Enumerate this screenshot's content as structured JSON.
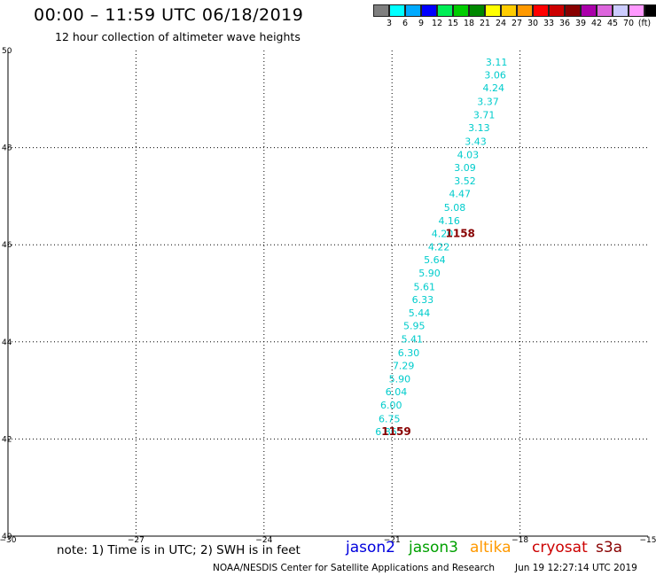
{
  "header": {
    "title": "00:00 – 11:59 UTC 06/18/2019",
    "subtitle": "12 hour collection of altimeter wave heights"
  },
  "colorbar": {
    "colors": [
      "#7f7f7f",
      "#00ffff",
      "#00aaff",
      "#0000ff",
      "#00ee55",
      "#00cc00",
      "#008800",
      "#ffff00",
      "#ffcc00",
      "#ff9900",
      "#ff0000",
      "#cc0000",
      "#880000",
      "#aa00aa",
      "#dd66dd",
      "#ccccff",
      "#ff99ff",
      "#000000"
    ],
    "labels": [
      "3",
      "6",
      "9",
      "12",
      "15",
      "18",
      "21",
      "24",
      "27",
      "30",
      "33",
      "36",
      "39",
      "42",
      "45",
      "70",
      "(ft)"
    ]
  },
  "chart_data": {
    "type": "scatter",
    "title": "00:00 – 11:59 UTC 06/18/2019",
    "subtitle": "12 hour collection of altimeter wave heights",
    "xlabel": "",
    "ylabel": "",
    "xlim": [
      -30,
      -15
    ],
    "ylim": [
      40,
      50
    ],
    "x_ticks": [
      -30,
      -27,
      -24,
      -21,
      -18,
      -15
    ],
    "x_tick_labels": [
      "−30",
      "−27",
      "−24",
      "−21",
      "−18",
      "−15"
    ],
    "y_ticks": [
      40,
      42,
      44,
      46,
      48,
      50
    ],
    "y_tick_labels": [
      "40",
      "42",
      "44",
      "46",
      "48",
      "50"
    ],
    "grid": true,
    "series": [
      {
        "name": "s3a",
        "color": "#00cccc",
        "points": [
          {
            "lon": -18.55,
            "lat": 49.76,
            "swh": "3.11"
          },
          {
            "lon": -18.58,
            "lat": 49.5,
            "swh": "3.06"
          },
          {
            "lon": -18.62,
            "lat": 49.23,
            "swh": "4.24"
          },
          {
            "lon": -18.75,
            "lat": 48.95,
            "swh": "3.37"
          },
          {
            "lon": -18.84,
            "lat": 48.68,
            "swh": "3.71"
          },
          {
            "lon": -18.96,
            "lat": 48.41,
            "swh": "3.13"
          },
          {
            "lon": -19.04,
            "lat": 48.13,
            "swh": "3.43"
          },
          {
            "lon": -19.22,
            "lat": 47.86,
            "swh": "4.03"
          },
          {
            "lon": -19.29,
            "lat": 47.59,
            "swh": "3.09"
          },
          {
            "lon": -19.29,
            "lat": 47.32,
            "swh": "3.52"
          },
          {
            "lon": -19.41,
            "lat": 47.05,
            "swh": "4.47"
          },
          {
            "lon": -19.53,
            "lat": 46.77,
            "swh": "5.08"
          },
          {
            "lon": -19.66,
            "lat": 46.5,
            "swh": "4.16"
          },
          {
            "lon": -19.82,
            "lat": 46.23,
            "swh": "4.20"
          },
          {
            "lon": -19.9,
            "lat": 45.96,
            "swh": "4.22"
          },
          {
            "lon": -20.0,
            "lat": 45.69,
            "swh": "5.64"
          },
          {
            "lon": -20.12,
            "lat": 45.42,
            "swh": "5.90"
          },
          {
            "lon": -20.24,
            "lat": 45.14,
            "swh": "5.61"
          },
          {
            "lon": -20.28,
            "lat": 44.87,
            "swh": "6.33"
          },
          {
            "lon": -20.36,
            "lat": 44.6,
            "swh": "5.44"
          },
          {
            "lon": -20.48,
            "lat": 44.33,
            "swh": "5.95"
          },
          {
            "lon": -20.53,
            "lat": 44.06,
            "swh": "5.41"
          },
          {
            "lon": -20.61,
            "lat": 43.78,
            "swh": "6.30"
          },
          {
            "lon": -20.73,
            "lat": 43.51,
            "swh": "7.29"
          },
          {
            "lon": -20.82,
            "lat": 43.24,
            "swh": "5.90"
          },
          {
            "lon": -20.9,
            "lat": 42.97,
            "swh": "6.04"
          },
          {
            "lon": -21.02,
            "lat": 42.7,
            "swh": "6.00"
          },
          {
            "lon": -21.06,
            "lat": 42.42,
            "swh": "6.75"
          },
          {
            "lon": -21.14,
            "lat": 42.15,
            "swh": "6.86"
          }
        ]
      }
    ],
    "time_labels": [
      {
        "lon": -19.4,
        "lat": 46.23,
        "text": "1158",
        "color": "#880000"
      },
      {
        "lon": -20.9,
        "lat": 42.15,
        "text": "1159",
        "color": "#880000"
      }
    ]
  },
  "footer": {
    "note": "note: 1) Time is in UTC; 2) SWH is in feet",
    "satellites": [
      {
        "name": "jason2",
        "color": "#0000dd"
      },
      {
        "name": "jason3",
        "color": "#00a000"
      },
      {
        "name": "altika",
        "color": "#ff9900"
      },
      {
        "name": "cryosat",
        "color": "#cc0000"
      },
      {
        "name": "s3a",
        "color": "#880000"
      }
    ],
    "credit": "NOAA/NESDIS Center for Satellite Applications and Research",
    "timestamp": "Jun 19 12:27:14 UTC 2019"
  }
}
